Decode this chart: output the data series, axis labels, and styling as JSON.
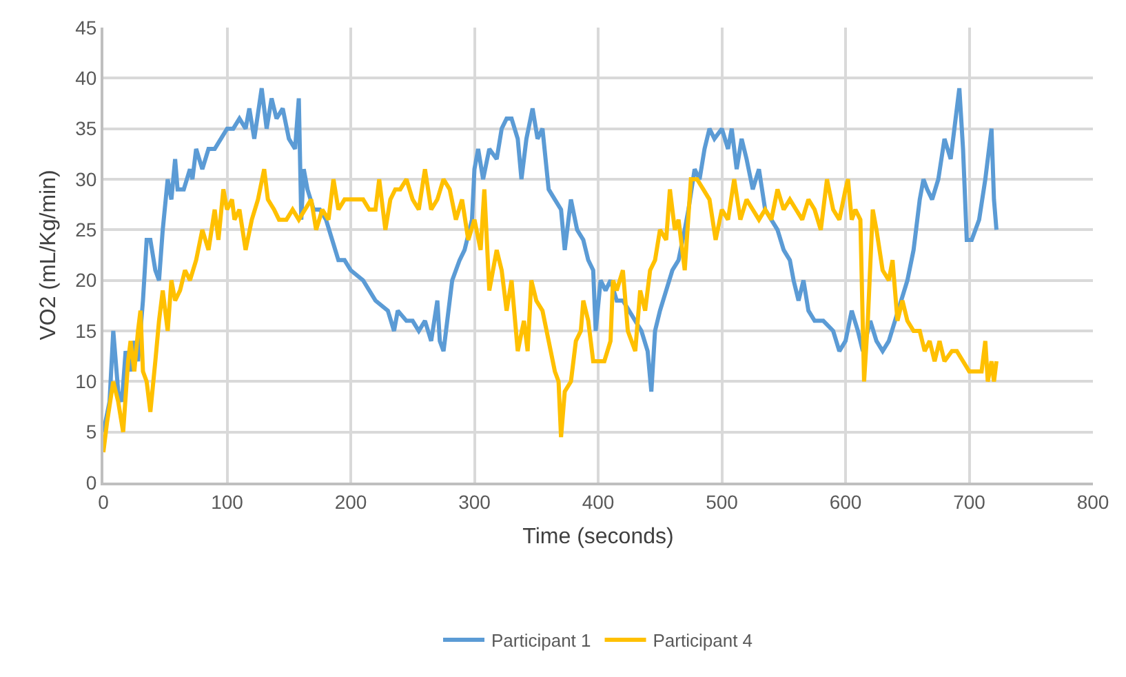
{
  "chart_data": {
    "type": "line",
    "xlabel": "Time (seconds)",
    "ylabel": "VO2 (mL/Kg/min)",
    "xlim": [
      0,
      800
    ],
    "xticks": [
      0,
      100,
      200,
      300,
      400,
      500,
      600,
      700,
      800
    ],
    "ylim": [
      0,
      45
    ],
    "yticks": [
      0,
      5,
      10,
      15,
      20,
      25,
      30,
      35,
      40,
      45
    ],
    "grid": true,
    "legend": "bottom",
    "marker": "none",
    "line_style": "solid",
    "series": [
      {
        "name": "Participant 1",
        "color": "#5b9bd5",
        "x": [
          0,
          5,
          8,
          12,
          15,
          18,
          22,
          25,
          28,
          32,
          35,
          38,
          42,
          45,
          48,
          52,
          55,
          58,
          60,
          65,
          70,
          72,
          75,
          80,
          85,
          90,
          95,
          100,
          105,
          110,
          115,
          118,
          122,
          128,
          132,
          136,
          140,
          145,
          150,
          155,
          158,
          160,
          162,
          165,
          170,
          175,
          180,
          185,
          190,
          195,
          200,
          210,
          220,
          230,
          235,
          238,
          245,
          250,
          255,
          260,
          265,
          270,
          272,
          275,
          278,
          282,
          288,
          292,
          298,
          300,
          303,
          307,
          312,
          318,
          322,
          326,
          330,
          335,
          338,
          342,
          347,
          351,
          355,
          360,
          365,
          370,
          373,
          378,
          383,
          388,
          392,
          396,
          398,
          402,
          406,
          410,
          415,
          420,
          425,
          430,
          435,
          440,
          443,
          446,
          450,
          455,
          460,
          465,
          470,
          473,
          478,
          482,
          486,
          490,
          494,
          500,
          505,
          508,
          512,
          516,
          520,
          525,
          530,
          535,
          540,
          545,
          550,
          555,
          558,
          562,
          566,
          570,
          575,
          582,
          590,
          595,
          600,
          605,
          610,
          614,
          620,
          625,
          630,
          635,
          640,
          645,
          650,
          655,
          660,
          663,
          666,
          670,
          675,
          680,
          685,
          688,
          692,
          695,
          698,
          702,
          708,
          713,
          718,
          720,
          722
        ],
        "values": [
          5,
          8,
          15,
          9,
          8,
          13,
          11,
          14,
          12,
          18,
          24,
          24,
          21,
          20,
          25,
          30,
          28,
          32,
          29,
          29,
          31,
          30,
          33,
          31,
          33,
          33,
          34,
          35,
          35,
          36,
          35,
          37,
          34,
          39,
          35,
          38,
          36,
          37,
          34,
          33,
          38,
          26,
          31,
          29,
          27,
          27,
          26,
          24,
          22,
          22,
          21,
          20,
          18,
          17,
          15,
          17,
          16,
          16,
          15,
          16,
          14,
          18,
          14,
          13,
          16,
          20,
          22,
          23,
          26,
          31,
          33,
          30,
          33,
          32,
          35,
          36,
          36,
          34,
          30,
          34,
          37,
          34,
          35,
          29,
          28,
          27,
          23,
          28,
          25,
          24,
          22,
          21,
          15,
          20,
          19,
          20,
          18,
          18,
          17,
          16,
          15,
          13,
          9,
          15,
          17,
          19,
          21,
          22,
          25,
          27,
          31,
          30,
          33,
          35,
          34,
          35,
          33,
          35,
          31,
          34,
          32,
          29,
          31,
          27,
          26,
          25,
          23,
          22,
          20,
          18,
          20,
          17,
          16,
          16,
          15,
          13,
          14,
          17,
          15,
          13,
          16,
          14,
          13,
          14,
          16,
          18,
          20,
          23,
          28,
          30,
          29,
          28,
          30,
          34,
          32,
          35,
          39,
          33,
          24,
          24,
          26,
          30,
          35,
          28,
          25
        ]
      },
      {
        "name": "Participant 4",
        "color": "#ffc000",
        "x": [
          0,
          3,
          8,
          12,
          16,
          20,
          22,
          25,
          28,
          30,
          32,
          35,
          38,
          42,
          45,
          48,
          52,
          55,
          58,
          62,
          66,
          70,
          75,
          80,
          85,
          90,
          93,
          97,
          100,
          104,
          106,
          110,
          115,
          120,
          125,
          130,
          133,
          138,
          142,
          148,
          153,
          158,
          163,
          168,
          172,
          177,
          182,
          186,
          190,
          195,
          200,
          210,
          215,
          220,
          223,
          228,
          232,
          236,
          240,
          245,
          250,
          255,
          260,
          265,
          270,
          275,
          280,
          285,
          290,
          295,
          300,
          305,
          308,
          312,
          318,
          322,
          326,
          330,
          335,
          340,
          343,
          346,
          350,
          355,
          360,
          365,
          368,
          370,
          373,
          378,
          382,
          386,
          388,
          392,
          396,
          400,
          405,
          410,
          412,
          415,
          420,
          424,
          430,
          434,
          438,
          442,
          446,
          450,
          455,
          458,
          462,
          465,
          470,
          475,
          480,
          485,
          490,
          495,
          500,
          505,
          510,
          515,
          520,
          525,
          530,
          535,
          540,
          545,
          550,
          555,
          560,
          565,
          570,
          575,
          580,
          585,
          590,
          595,
          600,
          602,
          605,
          608,
          612,
          615,
          618,
          622,
          625,
          630,
          635,
          638,
          642,
          646,
          650,
          655,
          660,
          664,
          668,
          672,
          676,
          680,
          686,
          690,
          695,
          700,
          705,
          710,
          713,
          715,
          718,
          720,
          722
        ],
        "values": [
          3,
          6,
          10,
          8,
          5,
          12,
          14,
          11,
          15,
          17,
          11,
          10,
          7,
          12,
          16,
          19,
          15,
          20,
          18,
          19,
          21,
          20,
          22,
          25,
          23,
          27,
          24,
          29,
          27,
          28,
          26,
          27,
          23,
          26,
          28,
          31,
          28,
          27,
          26,
          26,
          27,
          26,
          27,
          28,
          25,
          27,
          26,
          30,
          27,
          28,
          28,
          28,
          27,
          27,
          30,
          25,
          28,
          29,
          29,
          30,
          28,
          27,
          31,
          27,
          28,
          30,
          29,
          26,
          28,
          24,
          26,
          23,
          29,
          19,
          23,
          21,
          17,
          20,
          13,
          16,
          13,
          20,
          18,
          17,
          14,
          11,
          10,
          4.5,
          9,
          10,
          14,
          15,
          18,
          16,
          12,
          12,
          12,
          14,
          20,
          19,
          21,
          15,
          13,
          19,
          17,
          21,
          22,
          25,
          24,
          29,
          25,
          26,
          21,
          30,
          30,
          29,
          28,
          24,
          27,
          26,
          30,
          26,
          28,
          27,
          26,
          27,
          26,
          29,
          27,
          28,
          27,
          26,
          28,
          27,
          25,
          30,
          27,
          26,
          29,
          30,
          26,
          27,
          26,
          10,
          16,
          27,
          25,
          21,
          20,
          22,
          16,
          18,
          16,
          15,
          15,
          13,
          14,
          12,
          14,
          12,
          13,
          13,
          12,
          11,
          11,
          11,
          14,
          10,
          12,
          10,
          12
        ]
      }
    ]
  }
}
